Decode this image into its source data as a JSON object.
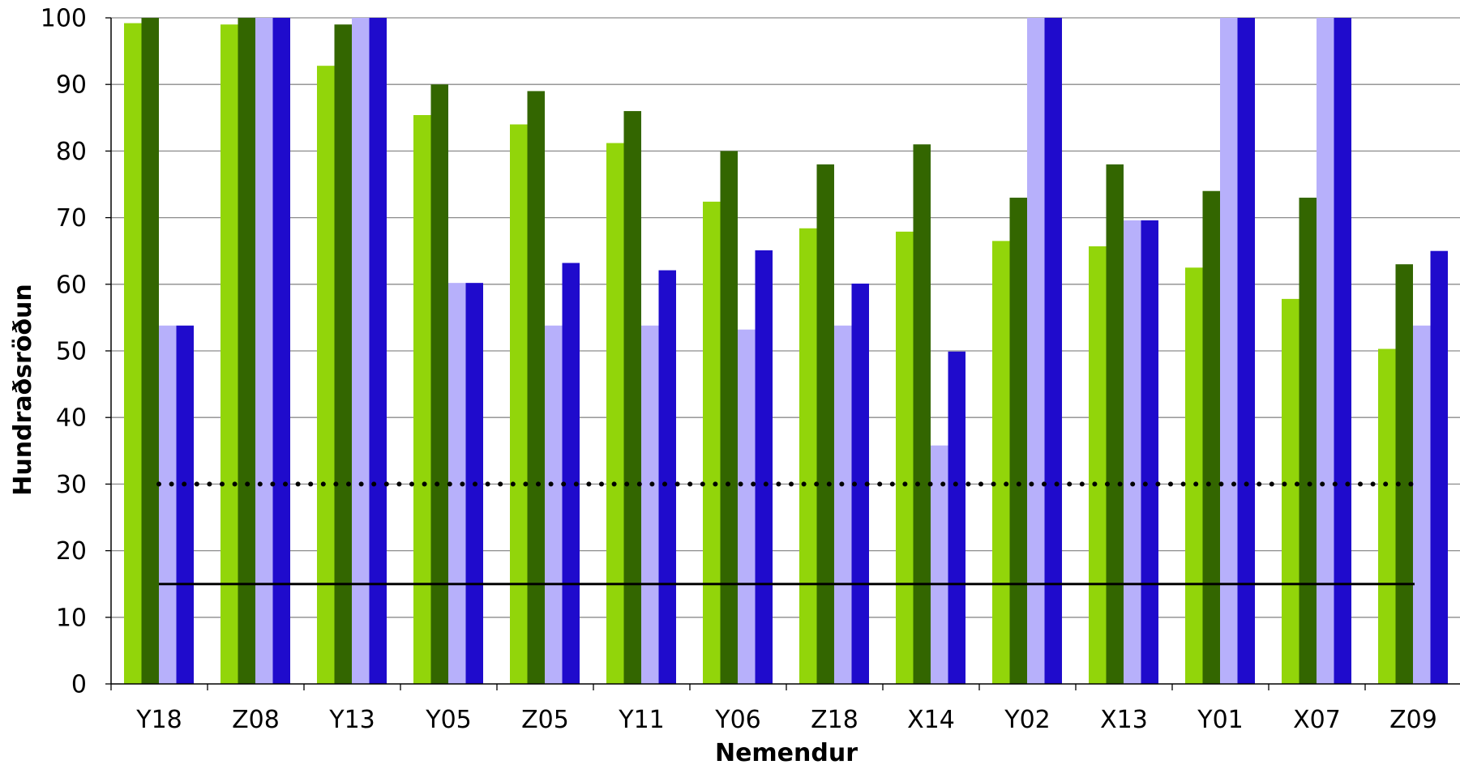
{
  "chart_data": {
    "type": "bar",
    "xlabel": "Nemendur",
    "ylabel": "Hundraðsröðun",
    "ylim": [
      0,
      100
    ],
    "yticks": [
      0,
      10,
      20,
      30,
      40,
      50,
      60,
      70,
      80,
      90,
      100
    ],
    "grid": true,
    "legend": "none",
    "categories": [
      "Y18",
      "Z08",
      "Y13",
      "Y05",
      "Z05",
      "Y11",
      "Y06",
      "Z18",
      "X14",
      "Y02",
      "X13",
      "Y01",
      "X07",
      "Z09"
    ],
    "series": [
      {
        "color": "#92d50a",
        "values": [
          99.2,
          99,
          92.8,
          85.4,
          84,
          81.2,
          72.4,
          68.4,
          67.9,
          66.5,
          65.7,
          62.5,
          57.8,
          50.3
        ]
      },
      {
        "color": "#336600",
        "values": [
          100,
          100,
          99,
          90,
          89,
          86,
          80,
          78,
          81,
          73,
          78,
          74,
          73,
          63
        ]
      },
      {
        "color": "#b7b0fb",
        "values": [
          53.8,
          100,
          100,
          60.2,
          53.8,
          53.8,
          53.2,
          53.8,
          35.8,
          100,
          69.6,
          100,
          100,
          53.8
        ]
      },
      {
        "color": "#1f0bcc",
        "values": [
          53.8,
          100,
          100,
          60.2,
          63.2,
          62.1,
          65.1,
          60.1,
          49.9,
          100,
          69.6,
          100,
          100,
          65
        ]
      }
    ],
    "reference_lines": [
      {
        "value": 30,
        "style": "dotted",
        "color": "#000000"
      },
      {
        "value": 15,
        "style": "solid",
        "color": "#000000"
      }
    ]
  }
}
